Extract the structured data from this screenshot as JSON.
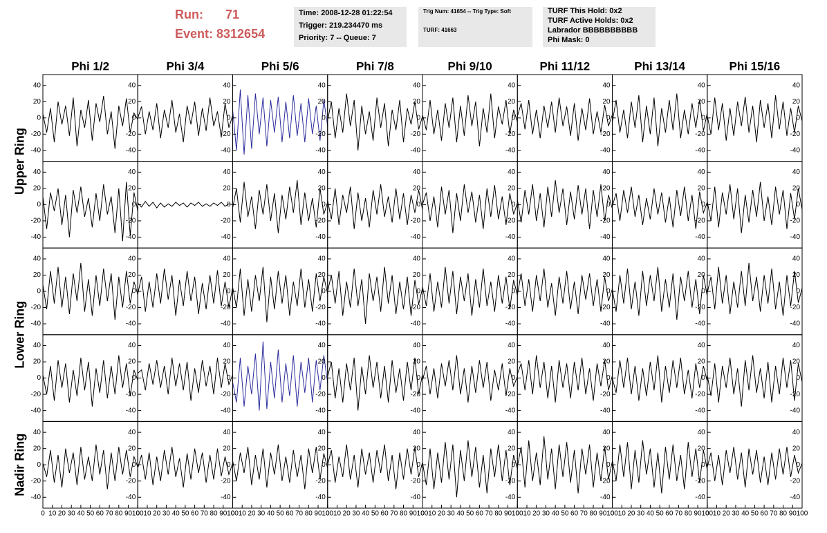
{
  "header": {
    "run_label": "Run:",
    "run": "71",
    "event": "Event: 8312654",
    "box1": [
      "Time: 2008-12-28 01:22:54",
      "Trigger: 219.234470 ms",
      "Priority: 7 -- Queue: 7"
    ],
    "box2": [
      "Trig Num: 41654 -- Trig Type: Soft",
      "TURF: 41663"
    ],
    "box3": [
      "TURF This Hold: 0x2",
      "TURF Active Holds: 0x2",
      "Labrador BBBBBBBBBB",
      "Phi Mask: 0"
    ]
  },
  "chart_data": {
    "type": "line",
    "columns": [
      "Phi 1/2",
      "Phi 3/4",
      "Phi 5/6",
      "Phi 7/8",
      "Phi 9/10",
      "Phi 11/12",
      "Phi 13/14",
      "Phi 15/16"
    ],
    "rings": [
      "Upper Ring",
      "Lower Ring",
      "Nadir Ring"
    ],
    "xlim": [
      0,
      100
    ],
    "xticks": [
      0,
      10,
      20,
      30,
      40,
      50,
      60,
      70,
      80,
      90,
      100
    ],
    "ylim": [
      -50,
      50
    ],
    "yticks": [
      -40,
      -20,
      0,
      20,
      40
    ],
    "x": [
      0,
      4,
      8,
      12,
      16,
      20,
      24,
      28,
      32,
      36,
      40,
      44,
      48,
      52,
      56,
      60,
      64,
      68,
      72,
      76,
      80,
      84,
      88,
      92,
      96,
      100
    ],
    "series": [
      {
        "color": "#000000",
        "values": [
          5,
          -18,
          12,
          -30,
          20,
          -8,
          15,
          -22,
          25,
          -35,
          10,
          -12,
          22,
          -28,
          18,
          -5,
          27,
          -20,
          8,
          -38,
          15,
          -10,
          24,
          -18,
          6,
          -2
        ]
      },
      {
        "color": "#000000",
        "values": [
          0,
          14,
          -20,
          8,
          -15,
          18,
          -25,
          10,
          -12,
          22,
          -18,
          5,
          -30,
          15,
          -8,
          20,
          -22,
          12,
          -16,
          25,
          -10,
          8,
          -24,
          18,
          -12,
          3
        ]
      },
      {
        "color": "#2b2b9c",
        "values": [
          10,
          -40,
          35,
          -45,
          28,
          -38,
          30,
          -20,
          25,
          -35,
          22,
          -18,
          26,
          -30,
          20,
          -25,
          28,
          -22,
          18,
          -30,
          24,
          -20,
          15,
          -28,
          22,
          -10
        ]
      },
      {
        "color": "#000000",
        "values": [
          -3,
          20,
          -25,
          12,
          -18,
          30,
          -10,
          22,
          -40,
          15,
          -20,
          8,
          -28,
          25,
          -12,
          18,
          -35,
          10,
          -15,
          22,
          -30,
          12,
          -8,
          20,
          -14,
          2
        ]
      },
      {
        "color": "#000000",
        "values": [
          4,
          -15,
          22,
          -20,
          10,
          -28,
          18,
          -12,
          25,
          -30,
          15,
          -22,
          28,
          -10,
          20,
          -35,
          12,
          -18,
          30,
          -25,
          14,
          -8,
          22,
          -20,
          10,
          -5
        ]
      },
      {
        "color": "#000000",
        "values": [
          2,
          18,
          -14,
          22,
          -20,
          10,
          -25,
          15,
          -12,
          20,
          -18,
          25,
          -10,
          14,
          -22,
          18,
          -28,
          12,
          -15,
          24,
          -20,
          8,
          -18,
          16,
          -10,
          4
        ]
      },
      {
        "color": "#000000",
        "values": [
          -5,
          22,
          -18,
          10,
          -25,
          20,
          -12,
          28,
          -30,
          15,
          -20,
          25,
          -35,
          12,
          -18,
          22,
          -15,
          30,
          -25,
          10,
          -20,
          18,
          -12,
          22,
          -16,
          6
        ]
      },
      {
        "color": "#000000",
        "values": [
          3,
          -20,
          25,
          -15,
          18,
          -28,
          12,
          -22,
          20,
          -10,
          26,
          -18,
          15,
          -30,
          22,
          -12,
          18,
          -25,
          28,
          -14,
          20,
          -22,
          12,
          -18,
          15,
          -4
        ]
      },
      {
        "color": "#000000",
        "values": [
          10,
          -30,
          15,
          -8,
          20,
          -25,
          12,
          -40,
          18,
          -10,
          22,
          -15,
          8,
          -28,
          14,
          -20,
          25,
          -12,
          10,
          -35,
          20,
          -45,
          28,
          -38,
          15,
          -8
        ]
      },
      {
        "color": "#000000",
        "values": [
          2,
          -3,
          4,
          -2,
          3,
          -4,
          2,
          -3,
          1,
          -2,
          3,
          -1,
          2,
          -3,
          2,
          -1,
          3,
          -2,
          1,
          -2,
          2,
          -1,
          3,
          -2,
          1,
          0
        ]
      },
      {
        "color": "#000000",
        "values": [
          -4,
          20,
          -22,
          28,
          -15,
          10,
          -30,
          18,
          -12,
          25,
          -20,
          14,
          -35,
          12,
          -18,
          22,
          -10,
          30,
          -25,
          15,
          -20,
          8,
          -28,
          20,
          -12,
          3
        ]
      },
      {
        "color": "#000000",
        "values": [
          5,
          -18,
          20,
          -25,
          12,
          -10,
          22,
          -30,
          15,
          -20,
          8,
          -28,
          18,
          -12,
          25,
          -15,
          10,
          -22,
          20,
          -18,
          14,
          -25,
          12,
          -10,
          18,
          -6
        ]
      },
      {
        "color": "#000000",
        "values": [
          0,
          15,
          -20,
          10,
          -28,
          22,
          -12,
          18,
          -35,
          14,
          -20,
          25,
          -10,
          16,
          -22,
          12,
          -30,
          20,
          -15,
          24,
          -18,
          10,
          -25,
          14,
          -12,
          2
        ]
      },
      {
        "color": "#000000",
        "values": [
          6,
          -22,
          18,
          -12,
          25,
          -20,
          14,
          -28,
          22,
          -15,
          30,
          -10,
          20,
          -25,
          16,
          -18,
          24,
          -12,
          20,
          -30,
          18,
          -15,
          25,
          -20,
          12,
          -5
        ]
      },
      {
        "color": "#000000",
        "values": [
          -2,
          14,
          -20,
          18,
          -10,
          22,
          -15,
          12,
          -25,
          8,
          -18,
          20,
          -12,
          15,
          -22,
          10,
          -28,
          18,
          -14,
          22,
          -20,
          12,
          -30,
          16,
          -10,
          3
        ]
      },
      {
        "color": "#000000",
        "values": [
          4,
          -20,
          22,
          -28,
          15,
          -12,
          25,
          -18,
          20,
          -35,
          12,
          -22,
          18,
          -15,
          28,
          -20,
          10,
          -25,
          22,
          -12,
          18,
          -30,
          14,
          -18,
          20,
          -6
        ]
      },
      {
        "color": "#000000",
        "values": [
          8,
          -22,
          25,
          -15,
          30,
          -20,
          18,
          -28,
          22,
          -12,
          35,
          -25,
          15,
          -30,
          20,
          -18,
          28,
          -12,
          22,
          -35,
          18,
          -20,
          25,
          -15,
          12,
          -4
        ]
      },
      {
        "color": "#000000",
        "values": [
          -3,
          18,
          -25,
          12,
          -20,
          22,
          -15,
          28,
          -10,
          20,
          -30,
          14,
          -18,
          25,
          -12,
          18,
          -28,
          10,
          -22,
          20,
          -15,
          26,
          -18,
          12,
          -20,
          5
        ]
      },
      {
        "color": "#000000",
        "values": [
          5,
          -20,
          28,
          -30,
          15,
          -25,
          20,
          -12,
          30,
          -38,
          18,
          -22,
          25,
          -15,
          20,
          -30,
          12,
          -18,
          28,
          -20,
          15,
          -25,
          22,
          -12,
          18,
          -3
        ]
      },
      {
        "color": "#000000",
        "values": [
          0,
          20,
          -15,
          25,
          -30,
          12,
          -20,
          28,
          -18,
          15,
          -40,
          22,
          -12,
          18,
          -25,
          30,
          -15,
          20,
          -28,
          12,
          -22,
          18,
          -30,
          14,
          -16,
          4
        ]
      },
      {
        "color": "#000000",
        "values": [
          6,
          -18,
          22,
          -25,
          12,
          -20,
          30,
          -15,
          25,
          -28,
          18,
          -12,
          22,
          -30,
          15,
          -20,
          28,
          -18,
          12,
          -25,
          20,
          -15,
          18,
          -22,
          14,
          -5
        ]
      },
      {
        "color": "#000000",
        "values": [
          -4,
          22,
          -18,
          15,
          -25,
          20,
          -12,
          28,
          -20,
          10,
          -30,
          18,
          -15,
          25,
          -22,
          12,
          -28,
          20,
          -10,
          22,
          -18,
          15,
          -25,
          18,
          -12,
          3
        ]
      },
      {
        "color": "#000000",
        "values": [
          3,
          -25,
          20,
          -15,
          28,
          -22,
          12,
          -30,
          25,
          -18,
          20,
          -12,
          30,
          -25,
          15,
          -20,
          22,
          -35,
          18,
          -12,
          25,
          -20,
          15,
          -28,
          20,
          -6
        ]
      },
      {
        "color": "#000000",
        "values": [
          -2,
          18,
          -22,
          30,
          -15,
          20,
          -28,
          12,
          -20,
          25,
          -18,
          35,
          -12,
          18,
          -25,
          20,
          -15,
          28,
          -22,
          12,
          -30,
          20,
          -18,
          25,
          -14,
          4
        ]
      },
      {
        "color": "#000000",
        "values": [
          4,
          -20,
          15,
          -28,
          22,
          -12,
          18,
          -30,
          10,
          -22,
          25,
          -15,
          20,
          -35,
          12,
          -18,
          22,
          -25,
          15,
          -20,
          28,
          -12,
          18,
          -22,
          10,
          -3
        ]
      },
      {
        "color": "#000000",
        "values": [
          6,
          10,
          -15,
          18,
          -8,
          22,
          -12,
          15,
          -20,
          25,
          -10,
          18,
          -15,
          20,
          -28,
          12,
          -18,
          22,
          -10,
          15,
          -20,
          25,
          -12,
          18,
          -8,
          4
        ]
      },
      {
        "color": "#2b2b9c",
        "values": [
          -5,
          -30,
          25,
          -35,
          15,
          -20,
          30,
          -40,
          45,
          -38,
          20,
          -25,
          35,
          -30,
          18,
          -22,
          28,
          -35,
          20,
          -18,
          25,
          -30,
          22,
          -15,
          28,
          -6
        ]
      },
      {
        "color": "#000000",
        "values": [
          2,
          20,
          -25,
          12,
          -30,
          18,
          -15,
          25,
          -40,
          14,
          -20,
          28,
          -12,
          20,
          -25,
          15,
          -30,
          22,
          -18,
          12,
          -28,
          20,
          -15,
          25,
          -20,
          5
        ]
      },
      {
        "color": "#000000",
        "values": [
          -3,
          15,
          -20,
          12,
          -25,
          18,
          -10,
          22,
          -15,
          28,
          -20,
          12,
          -30,
          15,
          -18,
          22,
          -12,
          20,
          -28,
          10,
          -15,
          18,
          -22,
          12,
          -10,
          2
        ]
      },
      {
        "color": "#000000",
        "values": [
          5,
          18,
          -15,
          22,
          -20,
          28,
          -12,
          20,
          -25,
          15,
          -30,
          22,
          -12,
          18,
          -25,
          20,
          -15,
          25,
          -20,
          12,
          -28,
          18,
          -10,
          22,
          -15,
          3
        ]
      },
      {
        "color": "#000000",
        "values": [
          0,
          -18,
          22,
          -12,
          25,
          -20,
          15,
          -28,
          12,
          -22,
          20,
          -15,
          28,
          -30,
          15,
          -18,
          22,
          -12,
          25,
          -20,
          10,
          -25,
          18,
          -12,
          15,
          -4
        ]
      },
      {
        "color": "#000000",
        "values": [
          4,
          -22,
          18,
          -30,
          15,
          -12,
          25,
          -20,
          12,
          -35,
          22,
          -15,
          28,
          -18,
          12,
          -25,
          20,
          -30,
          15,
          -20,
          25,
          -12,
          22,
          -28,
          18,
          -5
        ]
      },
      {
        "color": "#000000",
        "values": [
          2,
          -15,
          18,
          -22,
          12,
          -28,
          20,
          -10,
          15,
          -25,
          22,
          -18,
          10,
          -20,
          25,
          -12,
          18,
          -30,
          15,
          -20,
          22,
          -12,
          18,
          -15,
          10,
          -3
        ]
      },
      {
        "color": "#000000",
        "values": [
          -4,
          12,
          -18,
          15,
          -25,
          10,
          -20,
          18,
          -12,
          22,
          -15,
          8,
          -28,
          14,
          -18,
          20,
          -10,
          15,
          -22,
          12,
          -18,
          20,
          -14,
          10,
          -12,
          2
        ]
      },
      {
        "color": "#000000",
        "values": [
          5,
          -20,
          15,
          -10,
          22,
          -25,
          12,
          -18,
          20,
          -28,
          15,
          -12,
          25,
          -20,
          10,
          -22,
          18,
          -15,
          12,
          -30,
          20,
          -10,
          22,
          -18,
          14,
          -4
        ]
      },
      {
        "color": "#000000",
        "values": [
          0,
          18,
          -22,
          10,
          -15,
          25,
          -18,
          12,
          -28,
          20,
          -12,
          15,
          -22,
          18,
          -10,
          25,
          -20,
          12,
          -30,
          15,
          -18,
          20,
          -12,
          22,
          -15,
          3
        ]
      },
      {
        "color": "#000000",
        "values": [
          3,
          -25,
          20,
          -30,
          15,
          -22,
          28,
          -18,
          25,
          -40,
          18,
          -20,
          30,
          -15,
          22,
          -28,
          12,
          -35,
          20,
          -15,
          25,
          -20,
          18,
          -25,
          12,
          -5
        ]
      },
      {
        "color": "#000000",
        "values": [
          -2,
          22,
          -28,
          30,
          -20,
          15,
          -25,
          35,
          -18,
          20,
          -30,
          25,
          -15,
          28,
          -22,
          18,
          -35,
          20,
          -12,
          25,
          -28,
          15,
          -20,
          22,
          -18,
          4
        ]
      },
      {
        "color": "#000000",
        "values": [
          6,
          -20,
          25,
          -15,
          28,
          -30,
          18,
          -22,
          30,
          -12,
          20,
          -28,
          15,
          -35,
          22,
          -18,
          25,
          -20,
          12,
          -30,
          28,
          -15,
          20,
          -22,
          18,
          -6
        ]
      },
      {
        "color": "#000000",
        "values": [
          -3,
          15,
          -20,
          12,
          -25,
          18,
          -10,
          22,
          -18,
          15,
          -28,
          20,
          -12,
          18,
          -22,
          10,
          -25,
          15,
          -18,
          20,
          -12,
          22,
          -15,
          12,
          -10,
          2
        ]
      }
    ]
  }
}
